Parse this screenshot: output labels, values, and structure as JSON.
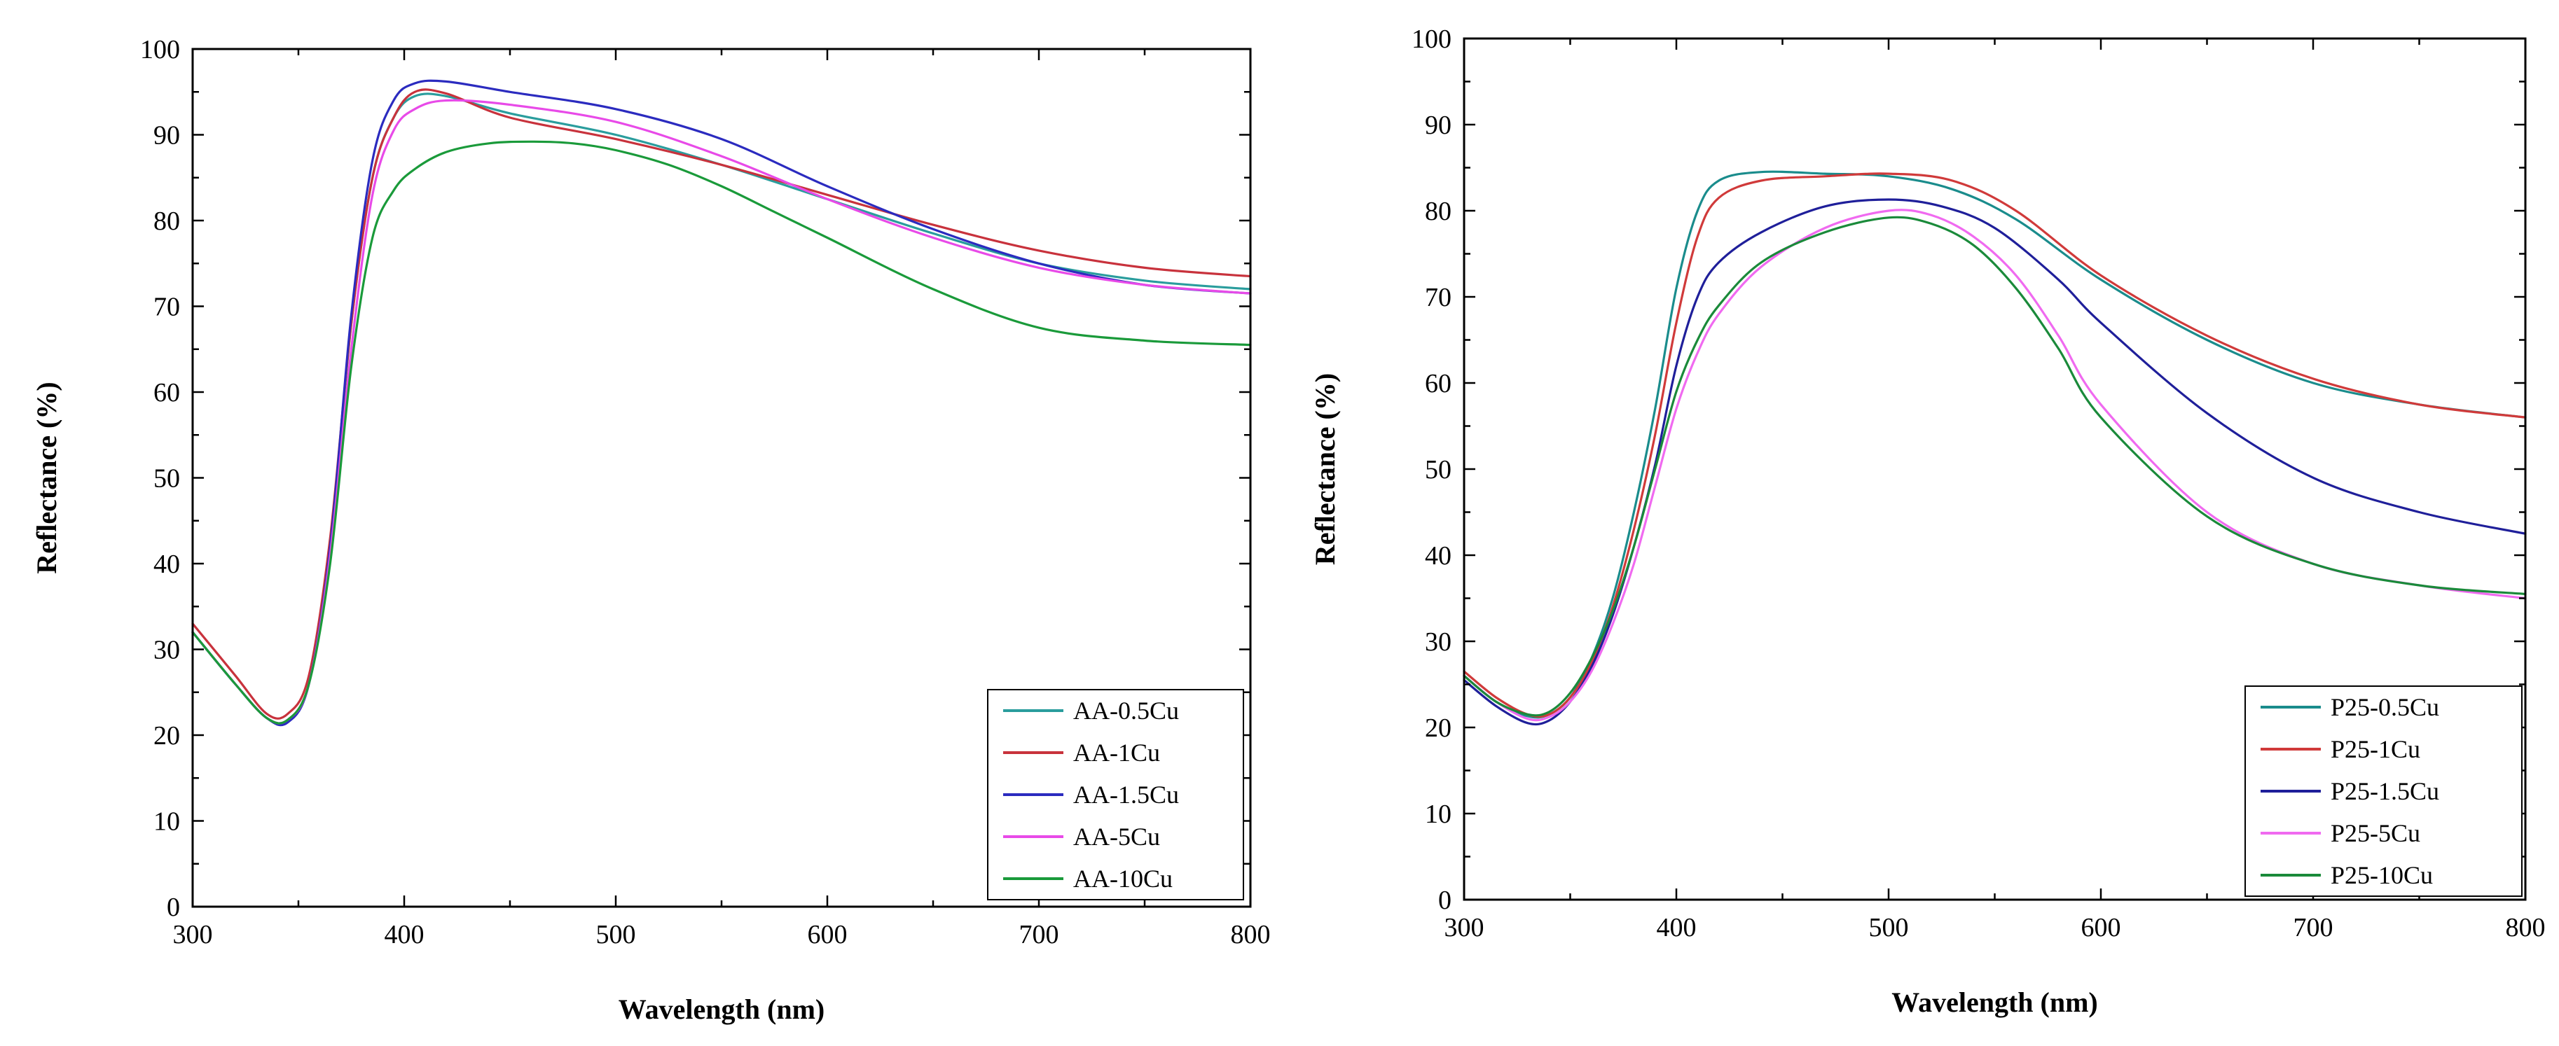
{
  "chart_data": [
    {
      "type": "line",
      "title": "",
      "xlabel": "Wavelength (nm)",
      "ylabel": "Reflectance (%)",
      "xlim": [
        300,
        800
      ],
      "ylim": [
        0,
        100
      ],
      "xticks": [
        300,
        400,
        500,
        600,
        700,
        800
      ],
      "yticks": [
        0,
        10,
        20,
        30,
        40,
        50,
        60,
        70,
        80,
        90,
        100
      ],
      "grid": false,
      "legend_position": "bottom-right",
      "series": [
        {
          "name": "AA-0.5Cu",
          "color": "#2a9d9d",
          "x": [
            300,
            320,
            335,
            345,
            355,
            365,
            375,
            385,
            395,
            405,
            420,
            450,
            500,
            550,
            600,
            650,
            700,
            750,
            800
          ],
          "y": [
            32,
            26,
            22,
            21.8,
            26,
            42,
            68,
            85,
            92,
            94.5,
            94.5,
            92.5,
            90,
            86.5,
            82.5,
            78.5,
            75,
            73,
            72
          ]
        },
        {
          "name": "AA-1Cu",
          "color": "#c8323c",
          "x": [
            300,
            320,
            335,
            345,
            355,
            365,
            375,
            385,
            395,
            405,
            420,
            450,
            500,
            550,
            600,
            650,
            700,
            750,
            800
          ],
          "y": [
            33,
            27,
            22.5,
            22.5,
            27,
            43,
            68,
            85,
            92,
            95,
            94.8,
            92,
            89.5,
            86.5,
            83,
            79.5,
            76.5,
            74.5,
            73.5
          ]
        },
        {
          "name": "AA-1.5Cu",
          "color": "#2b2bbf",
          "x": [
            300,
            320,
            335,
            345,
            355,
            365,
            375,
            385,
            395,
            405,
            420,
            450,
            500,
            550,
            600,
            650,
            700,
            750,
            800
          ],
          "y": [
            32,
            26,
            22,
            21.5,
            26,
            42,
            69,
            87,
            94,
            96,
            96.2,
            95,
            93,
            89.5,
            84,
            79,
            75,
            72.5,
            71.5
          ]
        },
        {
          "name": "AA-5Cu",
          "color": "#e84ae8",
          "x": [
            300,
            320,
            335,
            345,
            355,
            365,
            375,
            385,
            395,
            405,
            420,
            450,
            500,
            550,
            600,
            650,
            700,
            750,
            800
          ],
          "y": [
            32,
            26,
            22,
            21.8,
            26,
            41,
            65,
            83,
            90.5,
            93,
            94,
            93.5,
            91.5,
            87.5,
            82.5,
            78,
            74.5,
            72.5,
            71.5
          ]
        },
        {
          "name": "AA-10Cu",
          "color": "#1a9a3a",
          "x": [
            300,
            320,
            335,
            345,
            355,
            365,
            375,
            385,
            395,
            405,
            420,
            440,
            460,
            480,
            500,
            525,
            550,
            575,
            600,
            650,
            700,
            750,
            800
          ],
          "y": [
            32,
            26,
            22,
            21.8,
            26,
            40,
            63,
            78,
            83.5,
            86,
            88,
            89,
            89.2,
            89,
            88.2,
            86.5,
            84,
            81,
            78,
            72,
            67.5,
            66,
            65.5
          ]
        }
      ]
    },
    {
      "type": "line",
      "title": "",
      "xlabel": "Wavelength (nm)",
      "ylabel": "Reflectance (%)",
      "xlim": [
        300,
        800
      ],
      "ylim": [
        0,
        100
      ],
      "xticks": [
        300,
        400,
        500,
        600,
        700,
        800
      ],
      "yticks": [
        0,
        10,
        20,
        30,
        40,
        50,
        60,
        70,
        80,
        90,
        100
      ],
      "grid": false,
      "legend_position": "bottom-right",
      "series": [
        {
          "name": "P25-0.5Cu",
          "color": "#1a8c8c",
          "x": [
            300,
            315,
            330,
            340,
            350,
            360,
            370,
            380,
            390,
            400,
            410,
            420,
            440,
            470,
            500,
            530,
            560,
            600,
            650,
            700,
            750,
            800
          ],
          "y": [
            26,
            23,
            21.3,
            21.5,
            23.5,
            28,
            35,
            45,
            57,
            71,
            80,
            83.5,
            84.5,
            84.3,
            84,
            82.5,
            79,
            72,
            65,
            60,
            57.5,
            56
          ]
        },
        {
          "name": "P25-1Cu",
          "color": "#d03a3a",
          "x": [
            300,
            315,
            330,
            340,
            350,
            360,
            370,
            380,
            390,
            400,
            410,
            420,
            440,
            470,
            500,
            530,
            560,
            600,
            650,
            700,
            750,
            800
          ],
          "y": [
            26.5,
            23.5,
            21.5,
            21.5,
            23.5,
            27.5,
            34,
            43,
            54,
            67,
            77,
            81.5,
            83.5,
            84,
            84.3,
            83.5,
            80,
            72.5,
            65.5,
            60.5,
            57.5,
            56
          ]
        },
        {
          "name": "P25-1.5Cu",
          "color": "#1f1f9a",
          "x": [
            300,
            315,
            330,
            340,
            350,
            360,
            370,
            380,
            390,
            400,
            410,
            420,
            440,
            470,
            500,
            525,
            550,
            580,
            600,
            650,
            700,
            750,
            800
          ],
          "y": [
            25.5,
            22.5,
            20.5,
            20.8,
            23,
            27,
            33,
            41,
            50.5,
            62,
            70,
            74,
            77.5,
            80.5,
            81.3,
            80.5,
            78,
            72,
            67,
            56.5,
            49,
            45,
            42.5
          ]
        },
        {
          "name": "P25-5Cu",
          "color": "#f06af0",
          "x": [
            300,
            315,
            330,
            340,
            350,
            360,
            370,
            380,
            390,
            400,
            410,
            420,
            440,
            470,
            500,
            520,
            540,
            560,
            580,
            600,
            650,
            700,
            750,
            800
          ],
          "y": [
            26,
            23,
            21,
            21.2,
            23,
            26.5,
            32,
            39,
            48,
            57,
            63.5,
            68,
            73.5,
            78,
            80,
            79.5,
            77,
            72.5,
            65.5,
            57.5,
            45,
            39,
            36.5,
            35
          ]
        },
        {
          "name": "P25-10Cu",
          "color": "#1a8a3a",
          "x": [
            300,
            315,
            330,
            340,
            350,
            360,
            370,
            380,
            390,
            400,
            410,
            420,
            440,
            470,
            500,
            520,
            540,
            560,
            580,
            600,
            650,
            700,
            750,
            800
          ],
          "y": [
            26,
            23,
            21.5,
            21.8,
            24,
            28,
            33.5,
            41,
            50,
            59,
            65,
            69,
            74,
            77.5,
            79.2,
            78.5,
            76,
            71,
            64,
            56,
            44.5,
            39,
            36.5,
            35.5
          ]
        }
      ]
    }
  ]
}
